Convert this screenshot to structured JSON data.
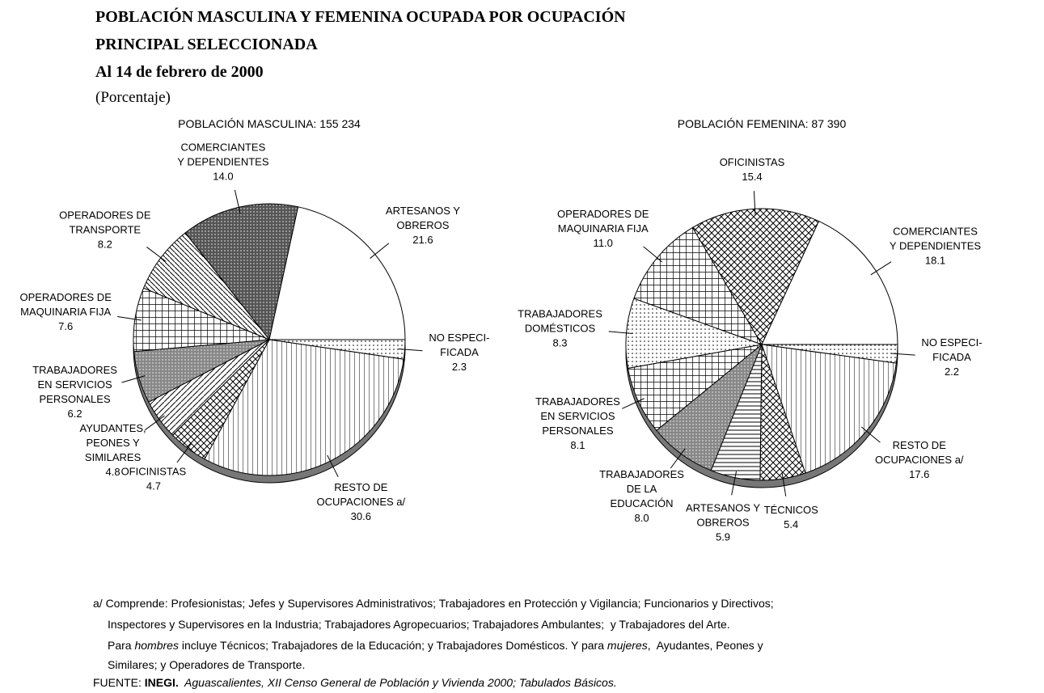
{
  "header": {
    "title": [
      "POBLACIÓN MASCULINA Y FEMENINA OCUPADA POR OCUPACIÓN",
      "PRINCIPAL SELECCIONADA"
    ],
    "date": "Al 14 de febrero de 2000",
    "unit": "(Porcentaje)"
  },
  "chart_data": [
    {
      "type": "pie",
      "title": "POBLACIÓN MASCULINA: 155 234",
      "categories": [
        "NO ESPECI-\nFICADA",
        "RESTO DE\nOCUPACIONES a/",
        "OFICINISTAS",
        "AYUDANTES,\nPEONES Y\nSIMILARES",
        "TRABAJADORES\nEN SERVICIOS\nPERSONALES",
        "OPERADORES DE\nMAQUINARIA FIJA",
        "OPERADORES DE\nTRANSPORTE",
        "COMERCIANTES\nY DEPENDIENTES",
        "ARTESANOS Y\nOBREROS"
      ],
      "values": [
        2.3,
        30.6,
        4.7,
        4.8,
        6.2,
        7.6,
        8.2,
        14,
        21.6
      ],
      "value_labels": [
        "2.3",
        "30.6",
        "4.7",
        "4.8",
        "6.2",
        "7.6",
        "8.2",
        "14.0",
        "21.6"
      ]
    },
    {
      "type": "pie",
      "title": "POBLACIÓN FEMENINA: 87 390",
      "categories": [
        "NO ESPECI-\nFICADA",
        "RESTO DE\nOCUPACIONES a/",
        "TÉCNICOS",
        "ARTESANOS Y\nOBREROS",
        "TRABAJADORES\nDE LA\nEDUCACIÓN",
        "TRABAJADORES\nEN SERVICIOS\nPERSONALES",
        "TRABAJADORES\nDOMÉSTICOS",
        "OPERADORES DE\nMAQUINARIA FIJA",
        "OFICINISTAS",
        "COMERCIANTES\nY DEPENDIENTES"
      ],
      "values": [
        2.2,
        17.6,
        5.4,
        5.9,
        8,
        8.1,
        8.3,
        11,
        15.4,
        18.1
      ],
      "value_labels": [
        "2.2",
        "17.6",
        "5.4",
        "5.9",
        "8.0",
        "8.1",
        "8.3",
        "11.0",
        "15.4",
        "18.1"
      ]
    }
  ],
  "footnote": [
    "a/ Comprende: Profesionistas; Jefes y Supervisores Administrativos; Trabajadores en Protección y Vigilancia; Funcionarios y Directivos;",
    "Inspectores y Supervisores en la Industria; Trabajadores Agropecuarios; Trabajadores Ambulantes;  y Trabajadores del Arte."
  ],
  "footnote_parts": [
    "Para ",
    "hombres",
    " incluye Técnicos; Trabajadores de la Educación; y Trabajadores Domésticos. Y para ",
    "mujeres",
    ",  Ayudantes, Peones y"
  ],
  "footnote_last": "Similares; y Operadores de Transporte.",
  "source": {
    "label": "FUENTE: ",
    "org": "INEGI.",
    "text": "  Aguascalientes, XII Censo General de Población y Vivienda 2000; Tabulados Básicos."
  }
}
